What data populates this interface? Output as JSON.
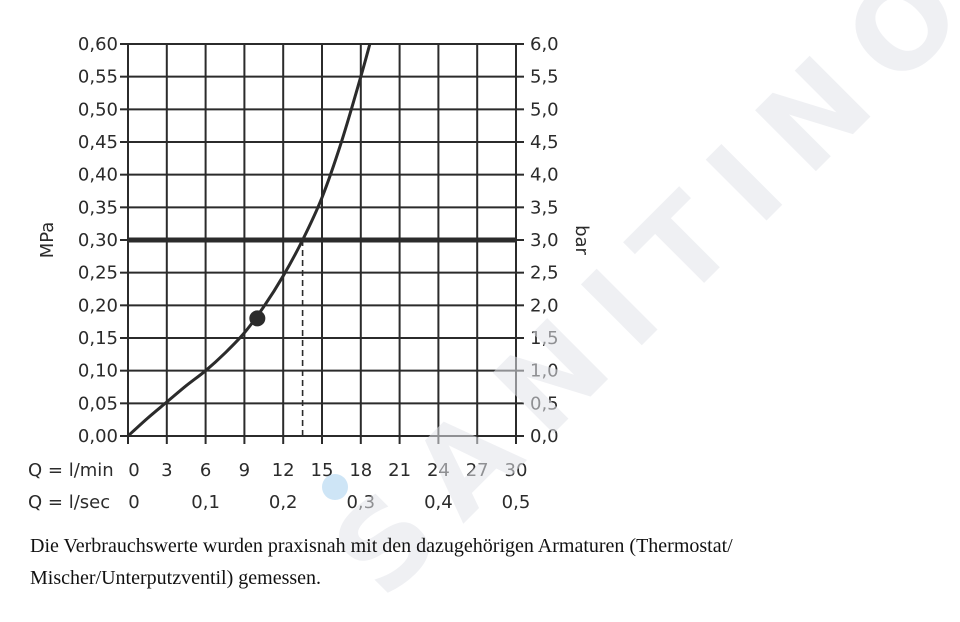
{
  "chart_data": {
    "type": "line",
    "x": [
      0,
      1.5,
      3,
      4.5,
      6,
      7.5,
      9,
      10.5,
      12,
      13.5,
      15,
      16.5,
      18,
      18.7
    ],
    "series": [
      {
        "values": [
          0.0,
          0.027,
          0.052,
          0.077,
          0.1,
          0.127,
          0.158,
          0.198,
          0.245,
          0.3,
          0.365,
          0.45,
          0.55,
          0.6
        ]
      }
    ],
    "marker_point": {
      "x": 10,
      "y": 0.18
    },
    "reference_line": {
      "y": 0.3
    },
    "drop_line": {
      "x": 13.5,
      "y": 0.3
    },
    "xlim": [
      0,
      30
    ],
    "ylim": [
      0,
      0.6
    ],
    "x_axis_rows": [
      {
        "label": "Q = l/min",
        "ticks": [
          "0",
          "3",
          "6",
          "9",
          "12",
          "15",
          "18",
          "21",
          "24",
          "27",
          "30"
        ],
        "positions": [
          0,
          3,
          6,
          9,
          12,
          15,
          18,
          21,
          24,
          27,
          30
        ]
      },
      {
        "label": "Q = l/sec",
        "ticks": [
          "0",
          "0,1",
          "0,2",
          "0,3",
          "0,4",
          "0,5"
        ],
        "positions": [
          0,
          6,
          12,
          18,
          24,
          30
        ]
      }
    ],
    "y_left": {
      "label": "MPa",
      "ticks": [
        "0,00",
        "0,05",
        "0,10",
        "0,15",
        "0,20",
        "0,25",
        "0,30",
        "0,35",
        "0,40",
        "0,45",
        "0,50",
        "0,55",
        "0,60"
      ]
    },
    "y_right": {
      "label": "bar",
      "ticks": [
        "0,0",
        "0,5",
        "1,0",
        "1,5",
        "2,0",
        "2,5",
        "3,0",
        "3,5",
        "4,0",
        "4,5",
        "5,0",
        "5,5",
        "6,0"
      ]
    },
    "grid": true
  },
  "caption": {
    "line1": "Die Verbrauchswerte wurden praxisnah mit den dazugehörigen Armaturen (Thermostat/",
    "line2": "Mischer/Unterputzventil) gemessen."
  },
  "watermark": {
    "text": "SANITINO"
  },
  "colors": {
    "ink": "#2b2b2b",
    "grid": "#2b2b2b",
    "watermark": "#e1e4e9",
    "watermark_dot": "#add3f0"
  }
}
